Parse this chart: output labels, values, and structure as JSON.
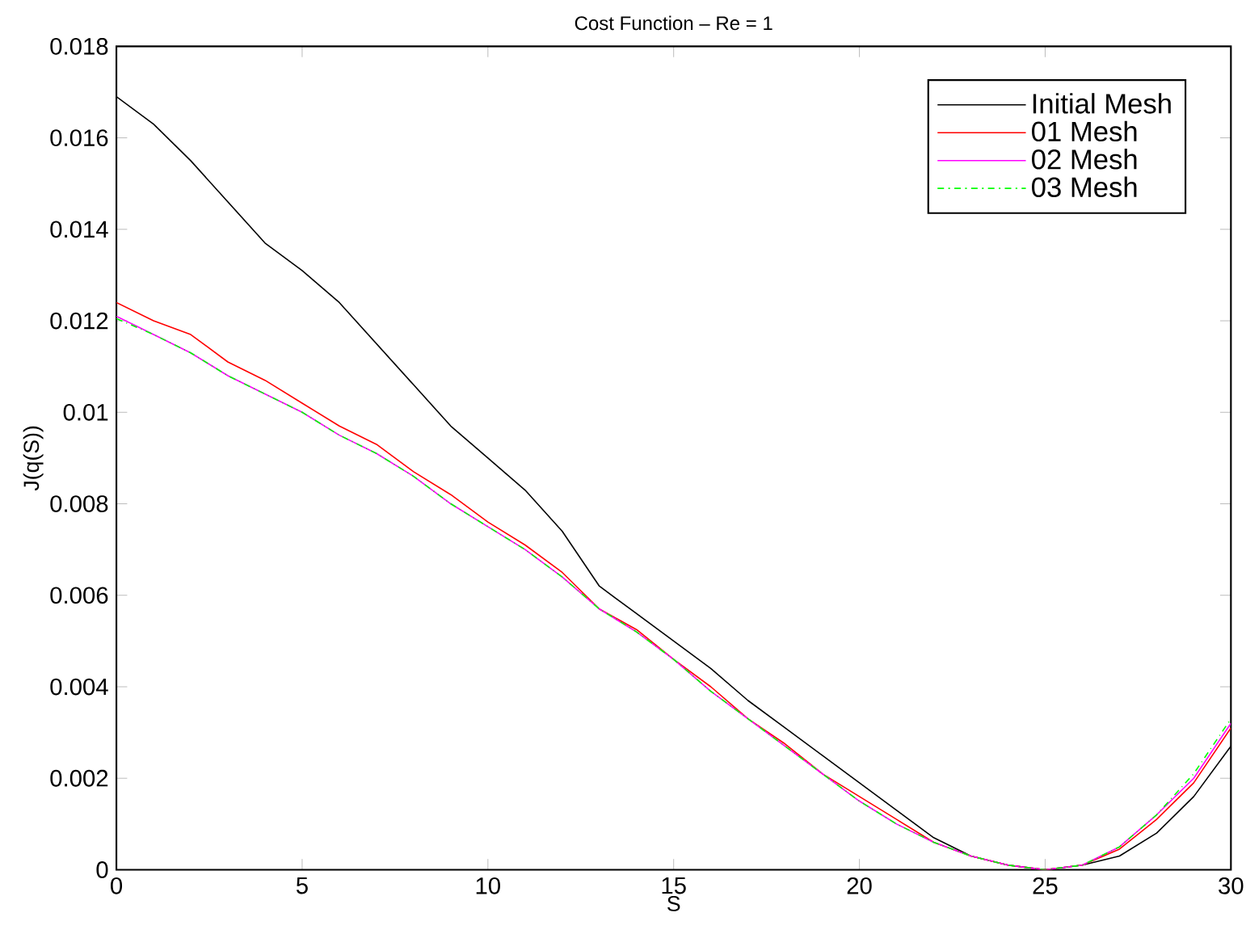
{
  "chart_data": {
    "type": "line",
    "title": "Cost Function – Re = 1",
    "xlabel": "S",
    "ylabel": "J(q(S))",
    "x": [
      0,
      1,
      2,
      3,
      4,
      5,
      6,
      7,
      8,
      9,
      10,
      11,
      12,
      13,
      14,
      15,
      16,
      17,
      18,
      19,
      20,
      21,
      22,
      23,
      24,
      25,
      26,
      27,
      28,
      29,
      30
    ],
    "series": [
      {
        "name": "Initial Mesh",
        "color": "#000000",
        "line_style": "solid",
        "values": [
          0.0169,
          0.0163,
          0.0155,
          0.0146,
          0.0137,
          0.0131,
          0.0124,
          0.0115,
          0.0106,
          0.0097,
          0.009,
          0.0083,
          0.0074,
          0.0062,
          0.0056,
          0.005,
          0.0044,
          0.0037,
          0.0031,
          0.0025,
          0.0019,
          0.0013,
          0.0007,
          0.0003,
          0.0001,
          0.0,
          0.0001,
          0.0003,
          0.0008,
          0.0016,
          0.0027
        ]
      },
      {
        "name": "01 Mesh",
        "color": "#ff0000",
        "line_style": "solid",
        "values": [
          0.0124,
          0.012,
          0.0117,
          0.0111,
          0.0107,
          0.0102,
          0.0097,
          0.0093,
          0.0087,
          0.0082,
          0.0076,
          0.0071,
          0.0065,
          0.0057,
          0.00525,
          0.0046,
          0.004,
          0.0033,
          0.00275,
          0.0021,
          0.0016,
          0.0011,
          0.0006,
          0.0003,
          0.0001,
          0.0,
          0.0001,
          0.00045,
          0.0011,
          0.0019,
          0.0031
        ]
      },
      {
        "name": "02 Mesh",
        "color": "#ff00ff",
        "line_style": "solid",
        "values": [
          0.0121,
          0.0117,
          0.0113,
          0.0108,
          0.0104,
          0.01,
          0.0095,
          0.0091,
          0.0086,
          0.008,
          0.0075,
          0.007,
          0.0064,
          0.0057,
          0.0052,
          0.0046,
          0.0039,
          0.0033,
          0.0027,
          0.0021,
          0.0015,
          0.001,
          0.0006,
          0.0003,
          0.0001,
          0.0,
          0.0001,
          0.0005,
          0.0012,
          0.002,
          0.0032
        ]
      },
      {
        "name": "03 Mesh",
        "color": "#00ff00",
        "line_style": "dashdot",
        "values": [
          0.01205,
          0.0117,
          0.0113,
          0.0108,
          0.0104,
          0.01,
          0.0095,
          0.0091,
          0.0086,
          0.008,
          0.0075,
          0.007,
          0.0064,
          0.0057,
          0.0052,
          0.0046,
          0.0039,
          0.0033,
          0.0027,
          0.0021,
          0.0015,
          0.001,
          0.0006,
          0.0003,
          0.0001,
          0.0,
          0.0001,
          0.0005,
          0.0012,
          0.0021,
          0.0033
        ]
      }
    ],
    "xlim": [
      0,
      30
    ],
    "ylim": [
      0,
      0.018
    ],
    "xticks": [
      0,
      5,
      10,
      15,
      20,
      25,
      30
    ],
    "yticks": [
      0,
      0.002,
      0.004,
      0.006,
      0.008,
      0.01,
      0.012,
      0.014,
      0.016,
      0.018
    ],
    "grid": false,
    "legend": "top right",
    "marker": "none"
  }
}
